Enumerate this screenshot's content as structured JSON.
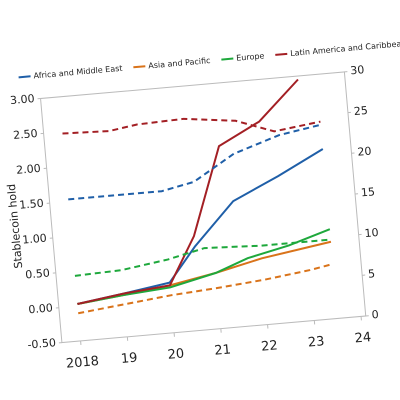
{
  "chart_data": {
    "type": "line",
    "y_label": "Stablecoin hold",
    "xlim": [
      2017.6,
      2024.1
    ],
    "xticks": [
      2018,
      {
        "value": 2019,
        "label": "19"
      },
      {
        "value": 2020,
        "label": "20"
      },
      {
        "value": 2021,
        "label": "21"
      },
      {
        "value": 2022,
        "label": "22"
      },
      {
        "value": 2023,
        "label": "23"
      },
      {
        "value": 2024,
        "label": "24"
      }
    ],
    "ylim": [
      -0.5,
      3.0
    ],
    "yticks": [
      {
        "value": -0.5,
        "label": "-0.50"
      },
      {
        "value": 0,
        "label": "0.00"
      },
      {
        "value": 0.5,
        "label": "0.50"
      },
      {
        "value": 1,
        "label": "1.00"
      },
      {
        "value": 1.5,
        "label": "1.50"
      },
      {
        "value": 2,
        "label": "2.00"
      },
      {
        "value": 2.5,
        "label": "2.50"
      },
      {
        "value": 3,
        "label": "3.00"
      }
    ],
    "y2lim": [
      0,
      30
    ],
    "y2ticks": [
      0,
      5,
      10,
      15,
      20,
      25,
      30
    ],
    "series": [
      {
        "name": "Africa and Middle East",
        "color": "#1f5fa8",
        "linestyle": "solid",
        "x": [
          2018,
          2019,
          2020,
          2020.6,
          2021.5,
          2022.5,
          2023.5
        ],
        "values": [
          0.03,
          0.12,
          0.22,
          0.7,
          1.3,
          1.6,
          1.93
        ]
      },
      {
        "name": "Asia and Pacific",
        "color": "#d9731a",
        "linestyle": "solid",
        "x": [
          2018,
          2019,
          2020,
          2021,
          2022,
          2023,
          2023.5
        ],
        "values": [
          0.03,
          0.1,
          0.18,
          0.3,
          0.45,
          0.55,
          0.6
        ]
      },
      {
        "name": "Europe",
        "color": "#1ea83c",
        "linestyle": "solid",
        "x": [
          2018,
          2019,
          2020,
          2021,
          2021.7,
          2022.6,
          2023.5
        ],
        "values": [
          0.03,
          0.1,
          0.15,
          0.3,
          0.47,
          0.6,
          0.78
        ]
      },
      {
        "name": "Latin America and Caribbean",
        "color": "#a31f24",
        "linestyle": "solid",
        "x": [
          2018,
          2019,
          2020,
          2020.6,
          2021.3,
          2022.2,
          2023.1
        ],
        "values": [
          0.03,
          0.12,
          0.18,
          0.85,
          2.1,
          2.4,
          2.95
        ]
      },
      {
        "color": "#1f5fa8",
        "linestyle": "dashed",
        "axis": "y2",
        "x": [
          2018,
          2019,
          2020,
          2020.7,
          2021.6,
          2022.6,
          2023.5
        ],
        "values": [
          17.4,
          17.4,
          17.4,
          18.2,
          21.2,
          23,
          23.8
        ]
      },
      {
        "color": "#a31f24",
        "linestyle": "dashed",
        "axis": "y2",
        "x": [
          2018,
          2019,
          2019.6,
          2020.6,
          2021.7,
          2022.5,
          2023.5
        ],
        "values": [
          25.5,
          25.3,
          25.8,
          26,
          25.2,
          23.5,
          24.2
        ]
      },
      {
        "color": "#1ea83c",
        "linestyle": "dashed",
        "axis": "y2",
        "x": [
          2018,
          2019,
          2020,
          2020.8,
          2022,
          2023.5
        ],
        "values": [
          8,
          8.2,
          9,
          10,
          9.7,
          9.7
        ]
      },
      {
        "color": "#d9731a",
        "linestyle": "dashed",
        "axis": "y2",
        "x": [
          2018,
          2019,
          2020,
          2021,
          2022,
          2023,
          2023.5
        ],
        "values": [
          3.4,
          4,
          4.6,
          5,
          5.5,
          6.2,
          6.7
        ]
      }
    ]
  }
}
